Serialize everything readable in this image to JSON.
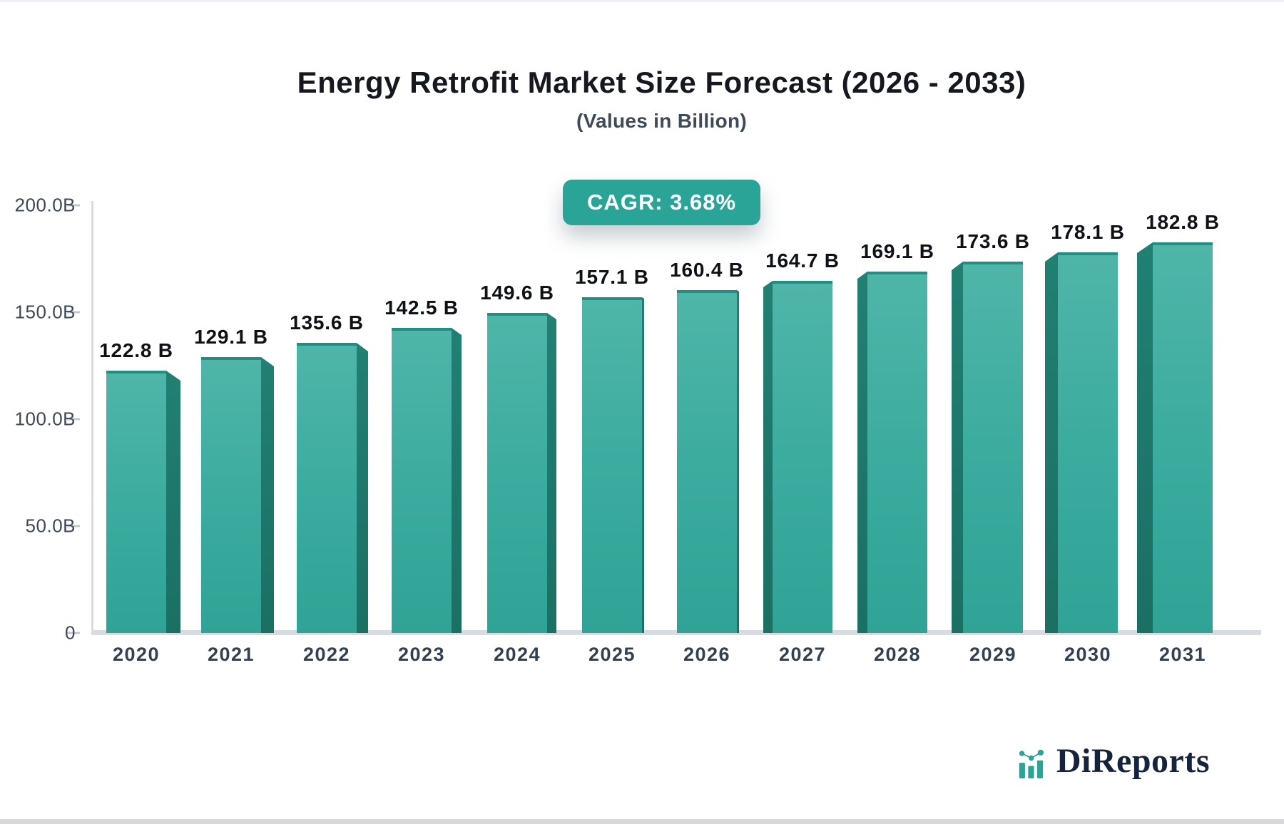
{
  "header": {
    "title": "Energy Retrofit Market Size Forecast (2026 - 2033)",
    "subtitle": "(Values in Billion)"
  },
  "badge": {
    "label": "CAGR: 3.68%",
    "color": "#2aa497",
    "text_color": "#ffffff"
  },
  "chart_data": {
    "type": "bar",
    "title": "Energy Retrofit Market Size Forecast (2026 - 2033)",
    "subtitle": "(Values in Billion)",
    "annotation": "CAGR: 3.68%",
    "categories": [
      "2020",
      "2021",
      "2022",
      "2023",
      "2024",
      "2025",
      "2026",
      "2027",
      "2028",
      "2029",
      "2030",
      "2031"
    ],
    "values": [
      122.8,
      129.1,
      135.6,
      142.5,
      149.6,
      157.1,
      160.4,
      164.7,
      169.1,
      173.6,
      178.1,
      182.8
    ],
    "value_labels": [
      "122.8 B",
      "129.1 B",
      "135.6 B",
      "142.5 B",
      "149.6 B",
      "157.1 B",
      "160.4 B",
      "164.7 B",
      "169.1 B",
      "173.6 B",
      "178.1 B",
      "182.8 B"
    ],
    "unit": "B",
    "xlabel": "",
    "ylabel": "",
    "ylim": [
      0,
      200
    ],
    "yticks": [
      {
        "value": 0,
        "label": "0"
      },
      {
        "value": 50,
        "label": "50.0B"
      },
      {
        "value": 100,
        "label": "100.0B"
      },
      {
        "value": 150,
        "label": "150.0B"
      },
      {
        "value": 200,
        "label": "200.0B"
      }
    ],
    "grid": false,
    "legend": false,
    "bar_color_top": "#4fb5a9",
    "bar_color_bottom": "#30a396",
    "bar_side_color": "#1f7e71",
    "bar_top_edge_color": "#1e8f82",
    "axis_color": "#d9dcde"
  },
  "footer": {
    "brand": "DiReports",
    "logo_icon": "mini-bar-chart-icon",
    "brand_color": "#16233c",
    "icon_color": "#2aa497"
  }
}
